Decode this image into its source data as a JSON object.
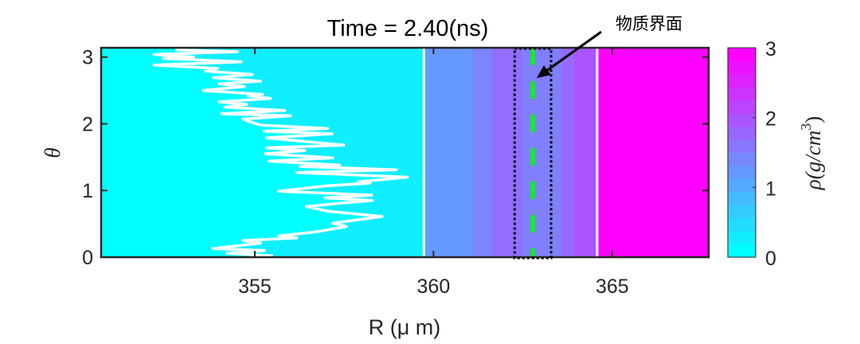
{
  "chart_data": {
    "type": "heatmap",
    "title": "Time = 2.40(ns)",
    "xlabel": "R (μ m)",
    "ylabel": "θ",
    "xlim": [
      350.7,
      367.7
    ],
    "ylim": [
      0,
      3.14
    ],
    "xticks": [
      355,
      360,
      365
    ],
    "yticks": [
      0,
      1,
      2,
      3
    ],
    "colorbar": {
      "label": "ρ(g/cm³)",
      "label_main": "ρ(g/cm",
      "label_sup": "3",
      "label_end": ")",
      "range": [
        0,
        3
      ],
      "ticks": [
        0,
        1,
        2,
        3
      ],
      "levels": 16,
      "colormap": "cool"
    },
    "background_rho": 0.19,
    "left_rho": 0,
    "bands": [
      {
        "r0": 359.73,
        "r1": 361.09,
        "rho": 1.2
      },
      {
        "r0": 361.09,
        "r1": 361.64,
        "rho": 1.43
      },
      {
        "r0": 361.64,
        "r1": 362.47,
        "rho": 1.72
      },
      {
        "r0": 362.47,
        "r1": 363.58,
        "rho": 1.5
      },
      {
        "r0": 363.58,
        "r1": 363.93,
        "rho": 1.76
      },
      {
        "r0": 363.93,
        "r1": 364.58,
        "rho": 2.0
      },
      {
        "r0": 364.58,
        "r1": 367.7,
        "rho": 3.0
      }
    ],
    "white_lines": [
      359.73,
      364.58
    ],
    "interface_line": 362.78,
    "interface_box": [
      362.27,
      363.29
    ],
    "front_curve": [
      [
        352.78,
        3.11
      ],
      [
        354.51,
        3.08
      ],
      [
        352.18,
        3.04
      ],
      [
        353.29,
        3.0
      ],
      [
        352.44,
        2.98
      ],
      [
        354.62,
        2.93
      ],
      [
        352.18,
        2.88
      ],
      [
        353.96,
        2.83
      ],
      [
        353.62,
        2.79
      ],
      [
        354.93,
        2.74
      ],
      [
        353.84,
        2.69
      ],
      [
        355.16,
        2.64
      ],
      [
        354.0,
        2.6
      ],
      [
        354.71,
        2.56
      ],
      [
        353.56,
        2.5
      ],
      [
        355.22,
        2.44
      ],
      [
        354.82,
        2.42
      ],
      [
        355.44,
        2.38
      ],
      [
        354.0,
        2.33
      ],
      [
        354.78,
        2.29
      ],
      [
        354.16,
        2.25
      ],
      [
        355.84,
        2.2
      ],
      [
        354.07,
        2.15
      ],
      [
        356.0,
        2.12
      ],
      [
        354.67,
        2.07
      ],
      [
        354.93,
        2.02
      ],
      [
        355.16,
        1.98
      ],
      [
        357.04,
        1.93
      ],
      [
        355.27,
        1.89
      ],
      [
        357.16,
        1.85
      ],
      [
        355.33,
        1.79
      ],
      [
        357.49,
        1.68
      ],
      [
        355.33,
        1.64
      ],
      [
        356.4,
        1.6
      ],
      [
        355.29,
        1.55
      ],
      [
        357.18,
        1.49
      ],
      [
        355.4,
        1.44
      ],
      [
        357.38,
        1.38
      ],
      [
        356.27,
        1.36
      ],
      [
        358.96,
        1.31
      ],
      [
        356.18,
        1.27
      ],
      [
        359.27,
        1.2
      ],
      [
        357.89,
        1.13
      ],
      [
        358.22,
        1.11
      ],
      [
        357.0,
        1.07
      ],
      [
        355.67,
        0.99
      ],
      [
        358.27,
        0.93
      ],
      [
        356.96,
        0.89
      ],
      [
        358.29,
        0.85
      ],
      [
        357.4,
        0.81
      ],
      [
        356.44,
        0.76
      ],
      [
        357.04,
        0.69
      ],
      [
        358.56,
        0.61
      ],
      [
        357.18,
        0.51
      ],
      [
        357.56,
        0.46
      ],
      [
        356.71,
        0.38
      ],
      [
        355.67,
        0.32
      ],
      [
        356.18,
        0.29
      ],
      [
        354.67,
        0.25
      ],
      [
        355.16,
        0.21
      ],
      [
        353.82,
        0.13
      ],
      [
        355.27,
        0.1
      ],
      [
        354.22,
        0.06
      ],
      [
        355.51,
        0.02
      ]
    ],
    "annotation": {
      "text": "物质界面",
      "target": [
        362.8,
        2.7
      ]
    },
    "colors": {
      "white_line": "#ffffff",
      "interface": "#00ff00",
      "box": "#000000"
    }
  }
}
